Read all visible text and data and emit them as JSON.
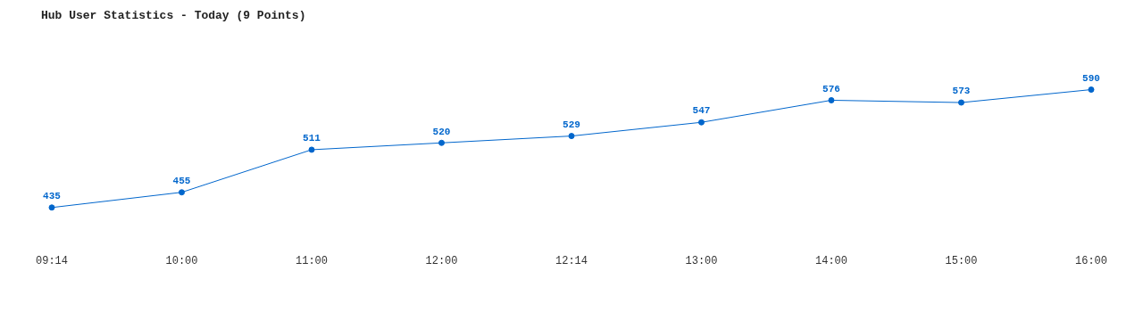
{
  "chart_data": {
    "type": "line",
    "title": "Hub User Statistics - Today (9 Points)",
    "categories": [
      "09:14",
      "10:00",
      "11:00",
      "12:00",
      "12:14",
      "13:00",
      "14:00",
      "15:00",
      "16:00"
    ],
    "series": [
      {
        "color": "#0066cc",
        "values": [
          435,
          455,
          511,
          520,
          529,
          547,
          576,
          573,
          590
        ]
      }
    ],
    "data_labels": true,
    "marker": "circle",
    "grid": false,
    "legend": false,
    "tick_labels": "x"
  }
}
